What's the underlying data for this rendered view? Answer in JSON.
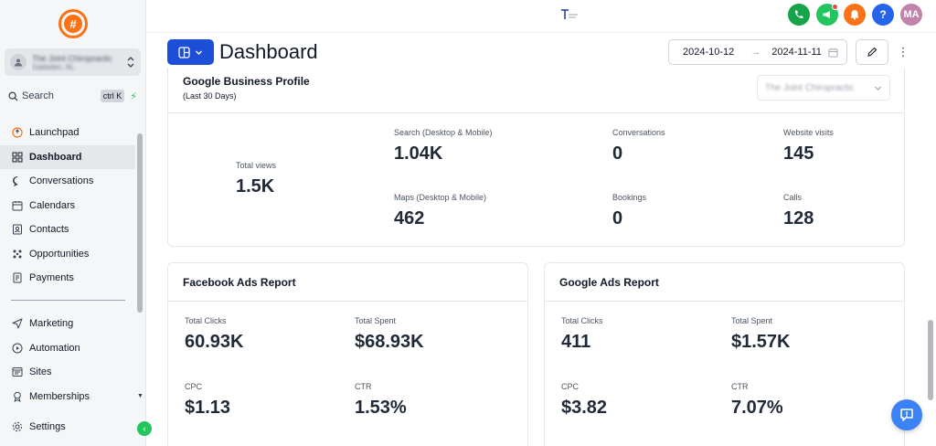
{
  "account": {
    "name": "The Joint Chiropractic",
    "location": "Gadsden, AL"
  },
  "search": {
    "label": "Search",
    "shortcut": "ctrl K"
  },
  "nav": {
    "items": [
      {
        "label": "Launchpad",
        "icon": "rocket-icon"
      },
      {
        "label": "Dashboard",
        "icon": "grid-icon"
      },
      {
        "label": "Conversations",
        "icon": "chat-icon"
      },
      {
        "label": "Calendars",
        "icon": "calendar-icon"
      },
      {
        "label": "Contacts",
        "icon": "contacts-icon"
      },
      {
        "label": "Opportunities",
        "icon": "opportunities-icon"
      },
      {
        "label": "Payments",
        "icon": "payments-icon"
      }
    ],
    "items2": [
      {
        "label": "Marketing",
        "icon": "send-icon"
      },
      {
        "label": "Automation",
        "icon": "automation-icon"
      },
      {
        "label": "Sites",
        "icon": "sites-icon"
      },
      {
        "label": "Memberships",
        "icon": "badge-icon"
      }
    ],
    "settings": "Settings"
  },
  "topbar": {
    "avatar": "MA",
    "help": "?"
  },
  "header": {
    "title": "Dashboard",
    "date_from": "2024-10-12",
    "date_to": "2024-11-11"
  },
  "gbp": {
    "title": "Google Business Profile",
    "subtitle": "(Last 30 Days)",
    "location_select": "The Joint Chiropractic",
    "total_views_label": "Total views",
    "total_views": "1.5K",
    "metrics": [
      {
        "label": "Search (Desktop & Mobile)",
        "value": "1.04K"
      },
      {
        "label": "Conversations",
        "value": "0"
      },
      {
        "label": "Website visits",
        "value": "145"
      },
      {
        "label": "Maps (Desktop & Mobile)",
        "value": "462"
      },
      {
        "label": "Bookings",
        "value": "0"
      },
      {
        "label": "Calls",
        "value": "128"
      }
    ]
  },
  "facebook": {
    "title": "Facebook Ads Report",
    "metrics": [
      {
        "label": "Total Clicks",
        "value": "60.93K"
      },
      {
        "label": "Total Spent",
        "value": "$68.93K"
      },
      {
        "label": "CPC",
        "value": "$1.13"
      },
      {
        "label": "CTR",
        "value": "1.53%"
      }
    ]
  },
  "google_ads": {
    "title": "Google Ads Report",
    "metrics": [
      {
        "label": "Total Clicks",
        "value": "411"
      },
      {
        "label": "Total Spent",
        "value": "$1.57K"
      },
      {
        "label": "CPC",
        "value": "$3.82"
      },
      {
        "label": "CTR",
        "value": "7.07%"
      }
    ]
  },
  "colors": {
    "accent": "#1d4ed8",
    "brand": "#f97316",
    "phone": "#16a34a",
    "megaphone": "#22c55e",
    "bell": "#f97316",
    "help": "#2563eb",
    "avatar": "#c084aa"
  }
}
